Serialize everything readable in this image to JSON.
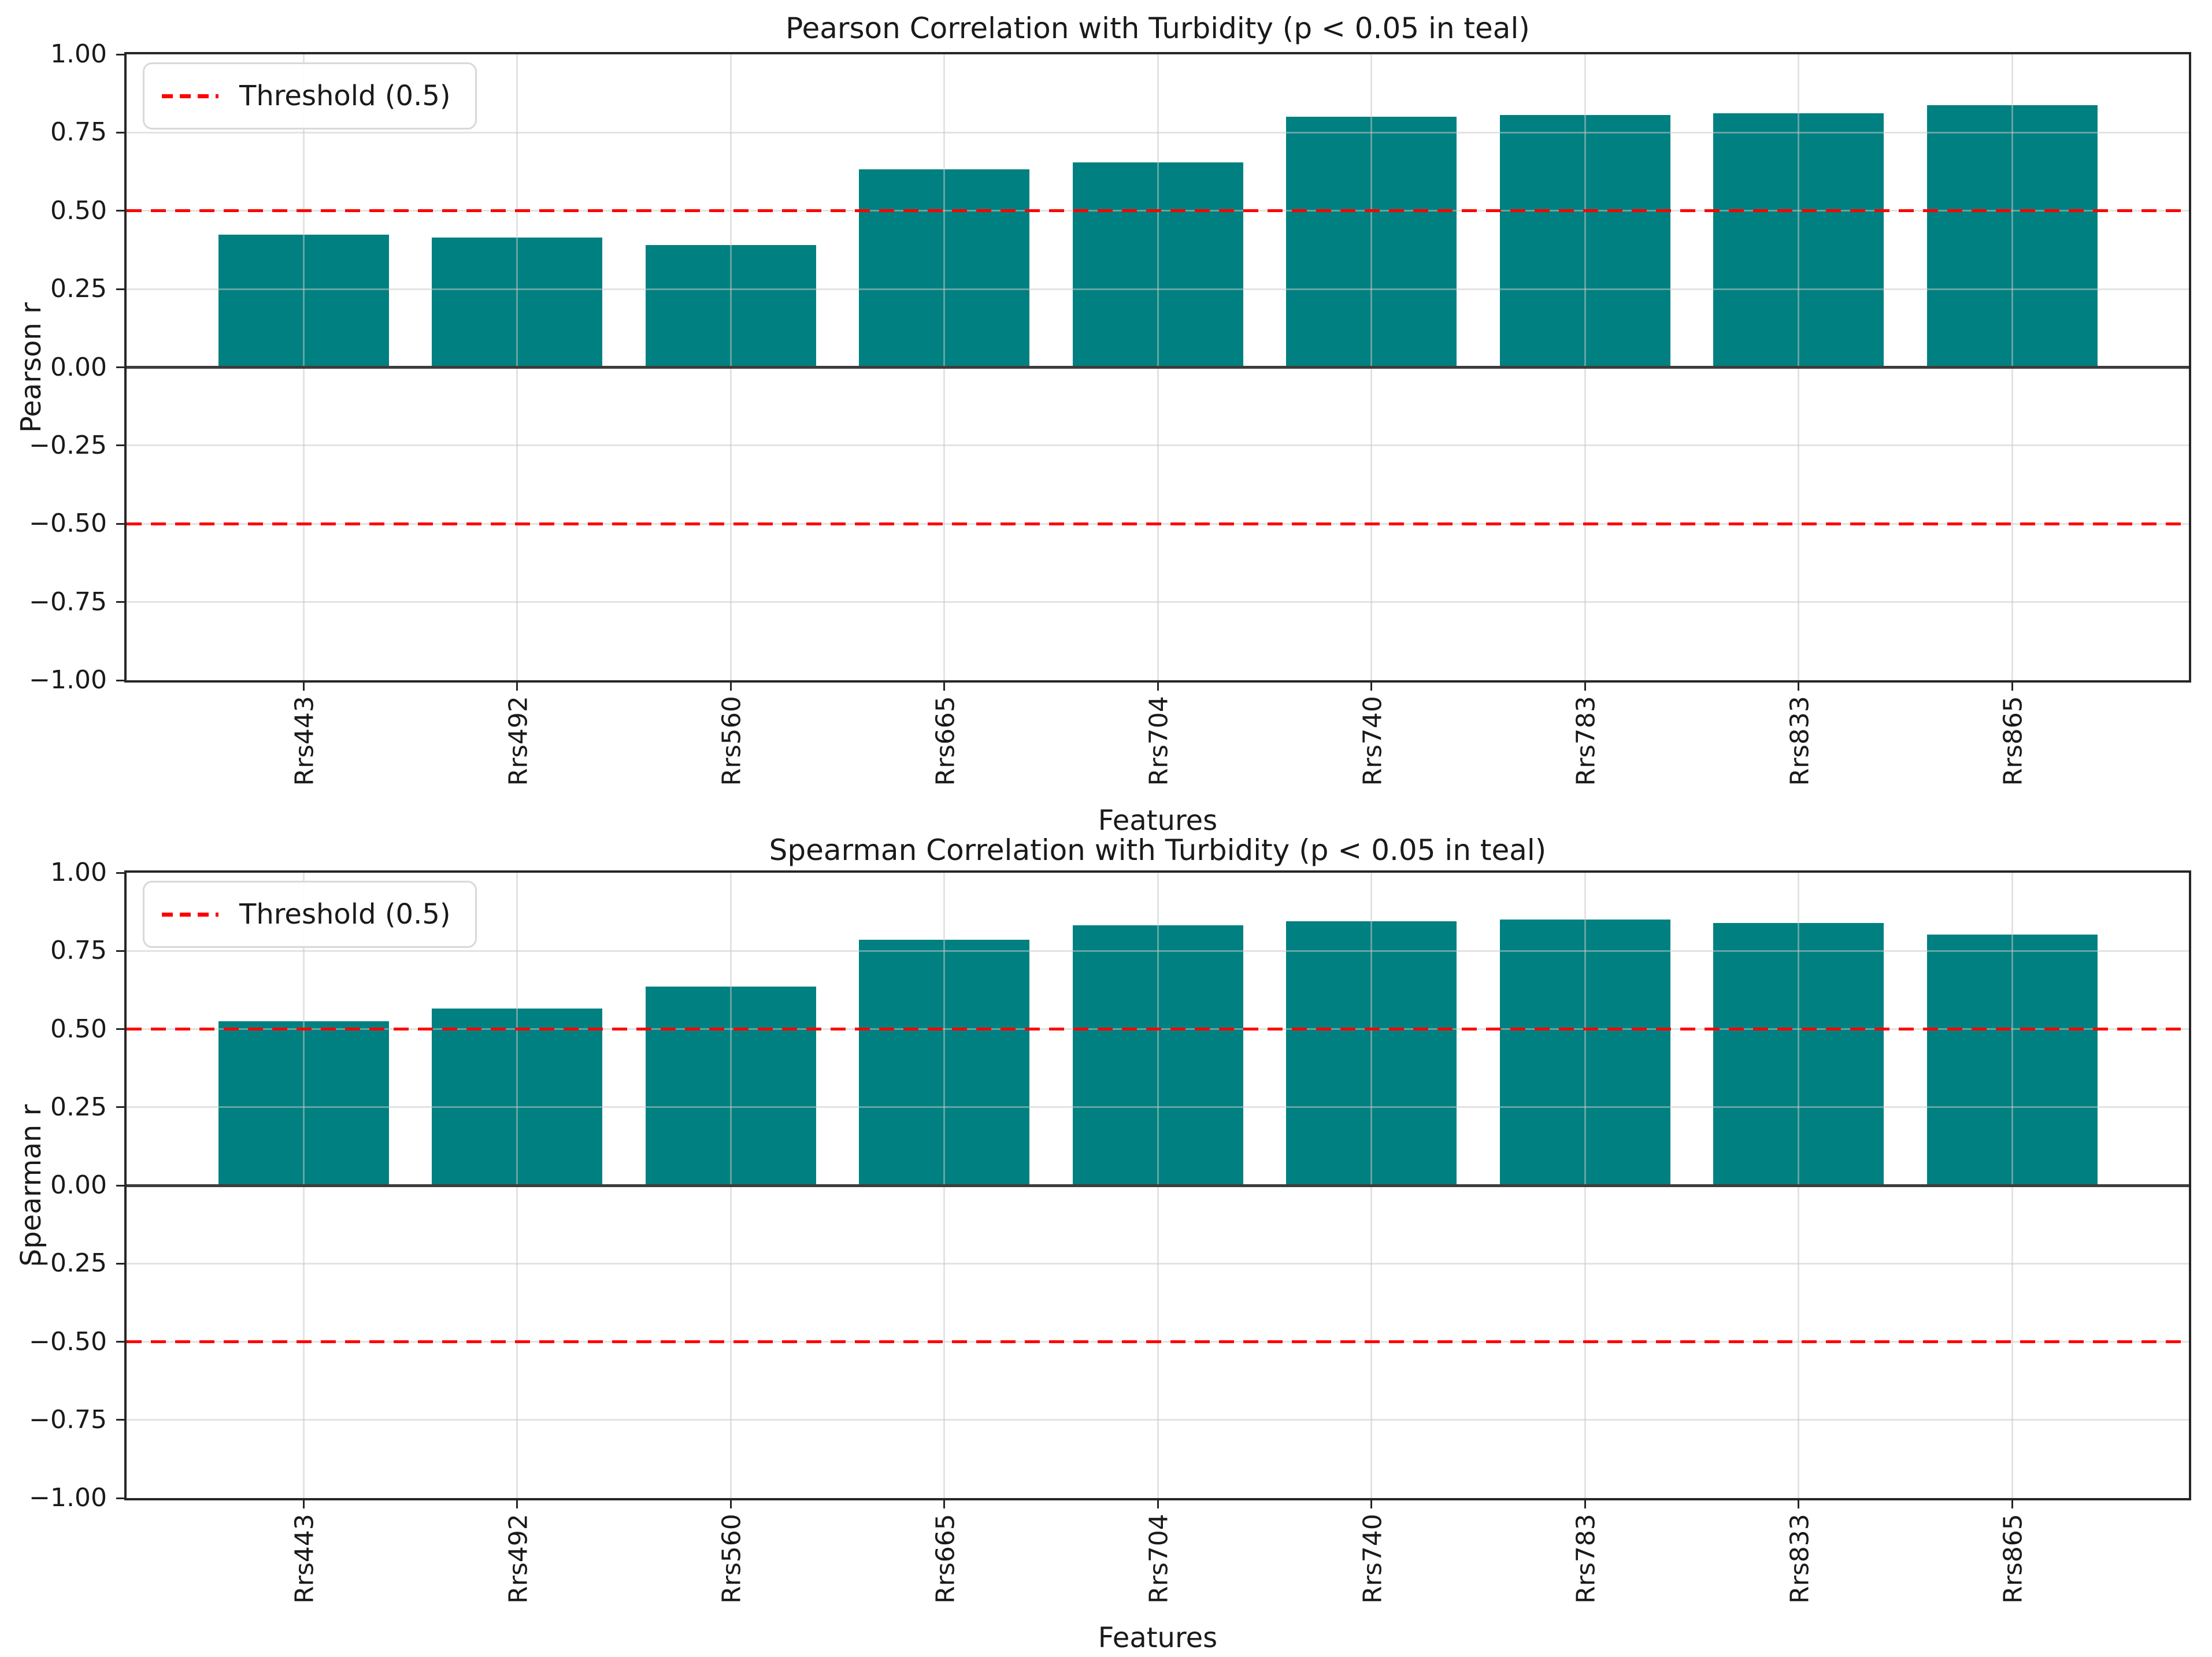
{
  "figure": {
    "background": "#ffffff",
    "text_color": "#1a1a1a",
    "bar_color": "#008080",
    "threshold_color": "#ff0000",
    "grid_color": "#c8c8c8",
    "spine_color": "#262626",
    "zero_line_color": "#3d3d3d"
  },
  "chart_data": [
    {
      "type": "bar",
      "title": "Pearson Correlation with Turbidity (p < 0.05 in teal)",
      "xlabel": "Features",
      "ylabel": "Pearson r",
      "categories": [
        "Rrs443",
        "Rrs492",
        "Rrs560",
        "Rrs665",
        "Rrs704",
        "Rrs740",
        "Rrs783",
        "Rrs833",
        "Rrs865"
      ],
      "values": [
        0.424,
        0.414,
        0.39,
        0.633,
        0.655,
        0.8,
        0.806,
        0.812,
        0.838
      ],
      "ylim": [
        -1.0,
        1.0
      ],
      "yticks": [
        1.0,
        0.75,
        0.5,
        0.25,
        0.0,
        -0.25,
        -0.5,
        -0.75,
        -1.0
      ],
      "ytick_labels": [
        "1.00",
        "0.75",
        "0.50",
        "0.25",
        "0.00",
        "−0.25",
        "−0.50",
        "−0.75",
        "−1.00"
      ],
      "threshold_lines": [
        0.5,
        -0.5
      ],
      "legend_label": "Threshold (0.5)",
      "legend_position": "upper left",
      "grid": true
    },
    {
      "type": "bar",
      "title": "Spearman Correlation with Turbidity (p < 0.05 in teal)",
      "xlabel": "Features",
      "ylabel": "Spearman r",
      "categories": [
        "Rrs443",
        "Rrs492",
        "Rrs560",
        "Rrs665",
        "Rrs704",
        "Rrs740",
        "Rrs783",
        "Rrs833",
        "Rrs865"
      ],
      "values": [
        0.525,
        0.565,
        0.635,
        0.786,
        0.831,
        0.844,
        0.85,
        0.839,
        0.802
      ],
      "ylim": [
        -1.0,
        1.0
      ],
      "yticks": [
        1.0,
        0.75,
        0.5,
        0.25,
        0.0,
        -0.25,
        -0.5,
        -0.75,
        -1.0
      ],
      "ytick_labels": [
        "1.00",
        "0.75",
        "0.50",
        "0.25",
        "0.00",
        "−0.25",
        "−0.50",
        "−0.75",
        "−1.00"
      ],
      "threshold_lines": [
        0.5,
        -0.5
      ],
      "legend_label": "Threshold (0.5)",
      "legend_position": "upper left",
      "grid": true
    }
  ]
}
